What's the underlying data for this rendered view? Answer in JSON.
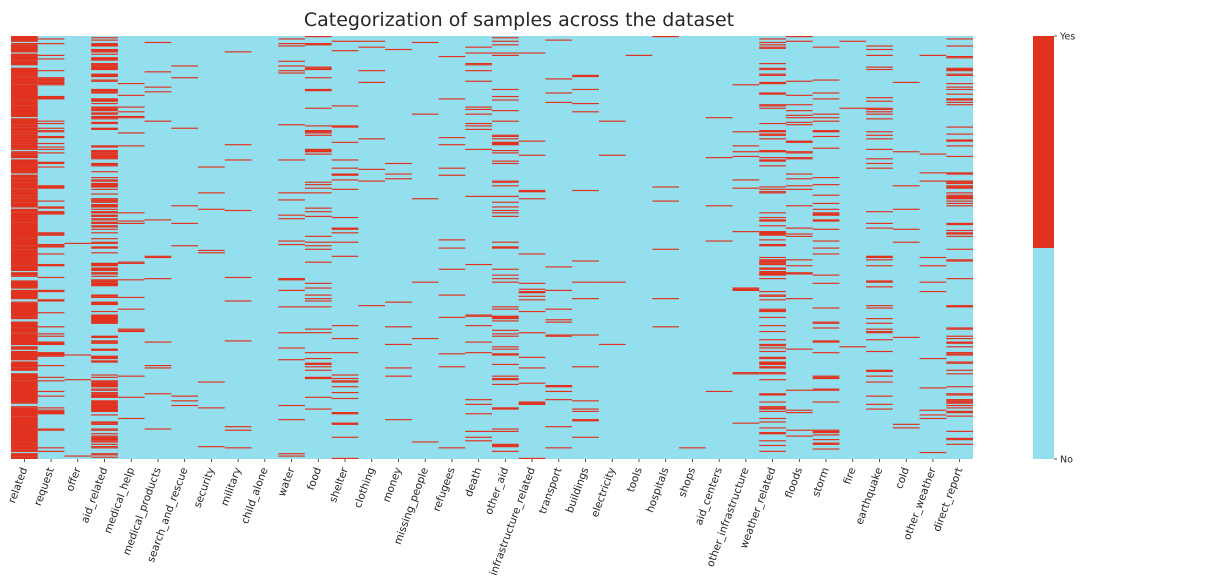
{
  "chart_data": {
    "type": "heatmap",
    "title": "Categorization of samples across the dataset",
    "xlabel": "",
    "ylabel": "",
    "categories": [
      "related",
      "request",
      "offer",
      "aid_related",
      "medical_help",
      "medical_products",
      "search_and_rescue",
      "security",
      "military",
      "child_alone",
      "water",
      "food",
      "shelter",
      "clothing",
      "money",
      "missing_people",
      "refugees",
      "death",
      "other_aid",
      "infrastructure_related",
      "transport",
      "buildings",
      "electricity",
      "tools",
      "hospitals",
      "shops",
      "aid_centers",
      "other_infrastructure",
      "weather_related",
      "floods",
      "storm",
      "fire",
      "earthquake",
      "cold",
      "other_weather",
      "direct_report"
    ],
    "value_labels": {
      "0": "No",
      "1": "Yes"
    },
    "colorbar": {
      "ticks": [
        "No",
        "Yes"
      ],
      "placement": "right"
    },
    "colors": {
      "no": "#94dfee",
      "yes": "#e0321e"
    },
    "approx_positive_rate": [
      0.76,
      0.17,
      0.005,
      0.42,
      0.08,
      0.05,
      0.03,
      0.02,
      0.03,
      0.0,
      0.06,
      0.11,
      0.09,
      0.015,
      0.02,
      0.01,
      0.03,
      0.05,
      0.13,
      0.065,
      0.045,
      0.05,
      0.02,
      0.006,
      0.011,
      0.005,
      0.012,
      0.044,
      0.28,
      0.08,
      0.09,
      0.011,
      0.09,
      0.02,
      0.05,
      0.19
    ],
    "grid": false
  }
}
